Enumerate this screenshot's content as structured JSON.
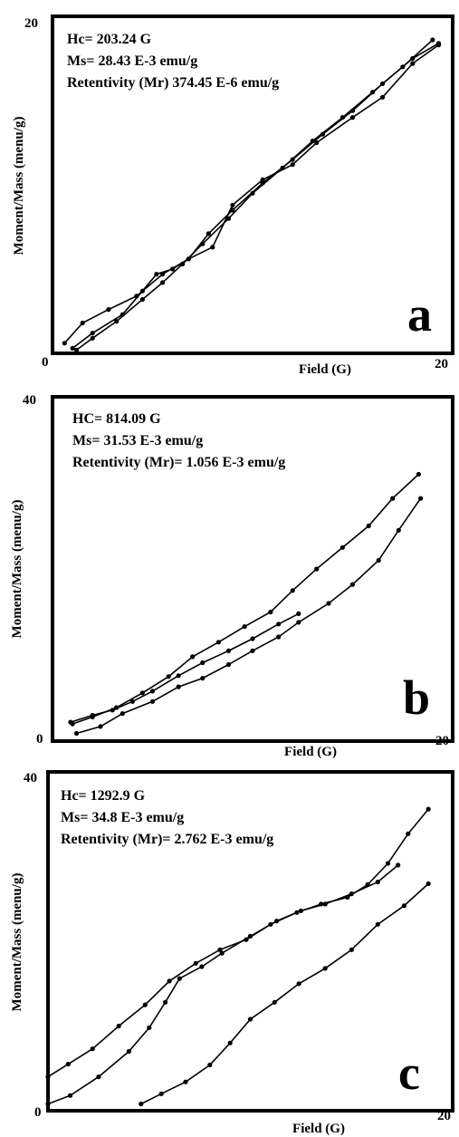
{
  "chart_data": [
    {
      "type": "line",
      "panel_label": "a",
      "xlabel": "Field (G)",
      "ylabel": "Moment/Mass (menu/g)",
      "xlim": [
        0,
        20
      ],
      "ylim": [
        0,
        20
      ],
      "x_tick_labels": [
        "0",
        "20"
      ],
      "y_tick_labels": [
        "0",
        "20"
      ],
      "annotations": [
        "Hc= 203.24 G",
        "Ms= 28.43 E-3 emu/g",
        "Retentivity (Mr) 374.45 E-6 emu/g"
      ],
      "series": [
        {
          "x": [
            0.6,
            1.5,
            2.8,
            4.2,
            5.5,
            6.8,
            8.0,
            9.0,
            10.5,
            12.0,
            13.2,
            15.0,
            16.5,
            18.0,
            19.3
          ],
          "y": [
            0.6,
            1.8,
            2.6,
            3.4,
            4.7,
            5.6,
            6.3,
            8.8,
            10.3,
            11.2,
            12.5,
            14.0,
            15.2,
            17.2,
            18.3
          ]
        },
        {
          "x": [
            1.0,
            2.0,
            3.5,
            4.5,
            5.2,
            6.0,
            6.8,
            7.8,
            9.0,
            10.5,
            12.0,
            13.5,
            15.0,
            16.5,
            18.0,
            19.3
          ],
          "y": [
            0.3,
            1.2,
            2.3,
            3.7,
            4.7,
            5.0,
            5.6,
            7.1,
            8.5,
            10.1,
            11.5,
            13.0,
            14.4,
            16.0,
            17.5,
            18.4
          ]
        },
        {
          "x": [
            1.2,
            2.0,
            3.2,
            4.5,
            5.5,
            6.5,
            7.5,
            8.8,
            10.0,
            11.5,
            13.0,
            14.5,
            16.0,
            17.5,
            19.0
          ],
          "y": [
            0.2,
            0.9,
            1.9,
            3.2,
            4.2,
            5.3,
            6.5,
            8.0,
            9.5,
            11.0,
            12.6,
            14.0,
            15.5,
            17.0,
            18.6
          ]
        }
      ]
    },
    {
      "type": "line",
      "panel_label": "b",
      "xlabel": "Field (G)",
      "ylabel": "Moment/Mass (menu/g)",
      "xlim": [
        0,
        20
      ],
      "ylim": [
        0,
        40
      ],
      "x_tick_labels": [
        "0",
        "20"
      ],
      "y_tick_labels": [
        "0",
        "40"
      ],
      "annotations": [
        "HC= 814.09 G",
        "Ms= 31.53 E-3 emu/g",
        "Retentivity (Mr)= 1.056 E-3 emu/g"
      ],
      "series": [
        {
          "x": [
            1.0,
            2.0,
            3.2,
            4.5,
            5.8,
            7.0,
            8.3,
            9.6,
            10.9,
            12.0,
            13.2,
            14.5,
            15.8,
            17.0,
            18.3
          ],
          "y": [
            2.0,
            2.8,
            3.9,
            5.6,
            7.5,
            9.8,
            11.5,
            13.3,
            15.0,
            17.5,
            20.0,
            22.5,
            25.0,
            28.2,
            31.0
          ]
        },
        {
          "x": [
            0.9,
            2.0,
            3.0,
            4.0,
            5.0,
            6.3,
            7.5,
            8.8,
            10.0,
            11.3,
            12.3
          ],
          "y": [
            2.2,
            3.0,
            3.6,
            4.6,
            5.8,
            7.6,
            9.1,
            10.5,
            11.9,
            13.6,
            14.8
          ]
        },
        {
          "x": [
            1.2,
            2.4,
            3.5,
            5.0,
            6.3,
            7.5,
            8.8,
            10.0,
            11.3,
            12.3,
            13.8,
            15.0,
            16.3,
            17.3,
            18.4
          ],
          "y": [
            0.9,
            1.7,
            3.2,
            4.6,
            6.3,
            7.3,
            8.9,
            10.5,
            12.1,
            13.8,
            16.0,
            18.2,
            21.0,
            24.5,
            28.2
          ]
        }
      ]
    },
    {
      "type": "line",
      "panel_label": "c",
      "xlabel": "Field (G)",
      "ylabel": "Moment/Mass (menu/g)",
      "xlim": [
        0,
        20
      ],
      "ylim": [
        0,
        40
      ],
      "x_tick_labels": [
        "0",
        "20"
      ],
      "y_tick_labels": [
        "0",
        "40"
      ],
      "annotations": [
        "Hc= 1292.9 G",
        "Ms= 34.8 E-3 emu/g",
        "Retentivity (Mr)= 2.762 E-3 emu/g"
      ],
      "series": [
        {
          "x": [
            0.0,
            1.0,
            2.2,
            3.5,
            4.8,
            6.0,
            7.3,
            8.5,
            9.8,
            11.0,
            12.3,
            13.5,
            14.8,
            15.8,
            16.8,
            17.8,
            18.8
          ],
          "y": [
            4.0,
            5.5,
            7.3,
            10.0,
            12.5,
            15.3,
            17.4,
            19.0,
            20.2,
            22.0,
            23.4,
            24.4,
            25.2,
            26.7,
            29.2,
            32.7,
            35.6
          ]
        },
        {
          "x": [
            0.0,
            1.1,
            2.5,
            4.0,
            5.0,
            5.8,
            6.5,
            7.6,
            8.6,
            10.0,
            11.3,
            12.5,
            13.7,
            15.0,
            16.3,
            17.3
          ],
          "y": [
            0.8,
            1.8,
            4.0,
            7.0,
            9.8,
            12.8,
            15.6,
            17.0,
            18.6,
            20.6,
            22.4,
            23.6,
            24.4,
            25.6,
            27.0,
            29.0
          ]
        },
        {
          "x": [
            4.6,
            5.6,
            6.8,
            8.0,
            9.0,
            10.0,
            11.2,
            12.4,
            13.7,
            15.0,
            16.3,
            17.6,
            18.8
          ],
          "y": [
            0.8,
            2.0,
            3.4,
            5.4,
            8.0,
            10.8,
            12.8,
            15.0,
            16.8,
            19.0,
            22.0,
            24.2,
            26.8
          ]
        }
      ]
    }
  ]
}
